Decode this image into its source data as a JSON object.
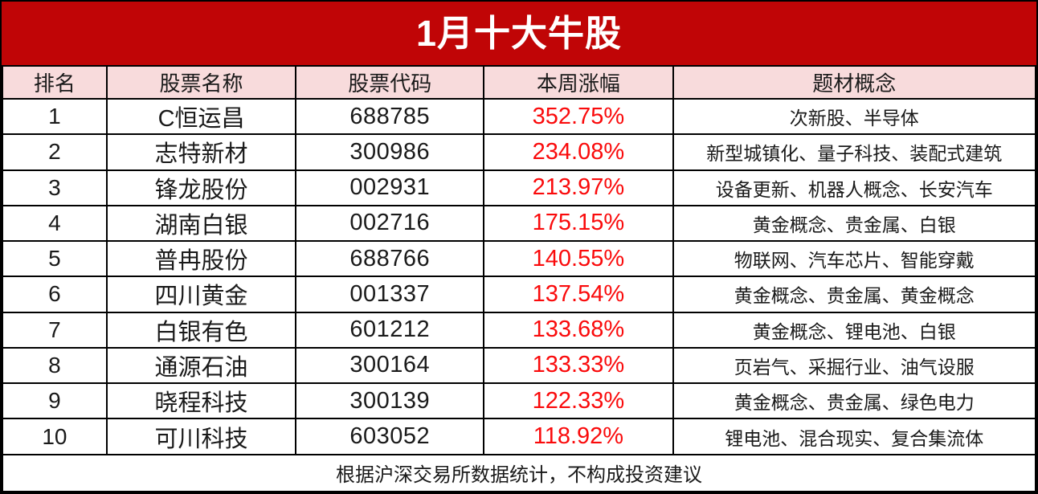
{
  "title": "1月十大牛股",
  "colors": {
    "banner_bg": "#C00506",
    "banner_text": "#FFFFFF",
    "header_bg": "#F8DBDC",
    "gain_text": "#FA0A0B",
    "body_text": "#1A1A1A",
    "border": "#000000"
  },
  "chart_data": {
    "type": "table",
    "title": "1月十大牛股",
    "columns": [
      "排名",
      "股票名称",
      "股票代码",
      "本周涨幅",
      "题材概念"
    ],
    "rows": [
      {
        "rank": "1",
        "name": "C恒运昌",
        "code": "688785",
        "gain": "352.75%",
        "concepts": "次新股、半导体"
      },
      {
        "rank": "2",
        "name": "志特新材",
        "code": "300986",
        "gain": "234.08%",
        "concepts": "新型城镇化、量子科技、装配式建筑"
      },
      {
        "rank": "3",
        "name": "锋龙股份",
        "code": "002931",
        "gain": "213.97%",
        "concepts": "设备更新、机器人概念、长安汽车"
      },
      {
        "rank": "4",
        "name": "湖南白银",
        "code": "002716",
        "gain": "175.15%",
        "concepts": "黄金概念、贵金属、白银"
      },
      {
        "rank": "5",
        "name": "普冉股份",
        "code": "688766",
        "gain": "140.55%",
        "concepts": "物联网、汽车芯片、智能穿戴"
      },
      {
        "rank": "6",
        "name": "四川黄金",
        "code": "001337",
        "gain": "137.54%",
        "concepts": "黄金概念、贵金属、黄金概念"
      },
      {
        "rank": "7",
        "name": "白银有色",
        "code": "601212",
        "gain": "133.68%",
        "concepts": "黄金概念、锂电池、白银"
      },
      {
        "rank": "8",
        "name": "通源石油",
        "code": "300164",
        "gain": "133.33%",
        "concepts": "页岩气、采掘行业、油气设服"
      },
      {
        "rank": "9",
        "name": "晓程科技",
        "code": "300139",
        "gain": "122.33%",
        "concepts": "黄金概念、贵金属、绿色电力"
      },
      {
        "rank": "10",
        "name": "可川科技",
        "code": "603052",
        "gain": "118.92%",
        "concepts": "锂电池、混合现实、复合集流体"
      }
    ],
    "footnote": "根据沪深交易所数据统计，不构成投资建议"
  }
}
